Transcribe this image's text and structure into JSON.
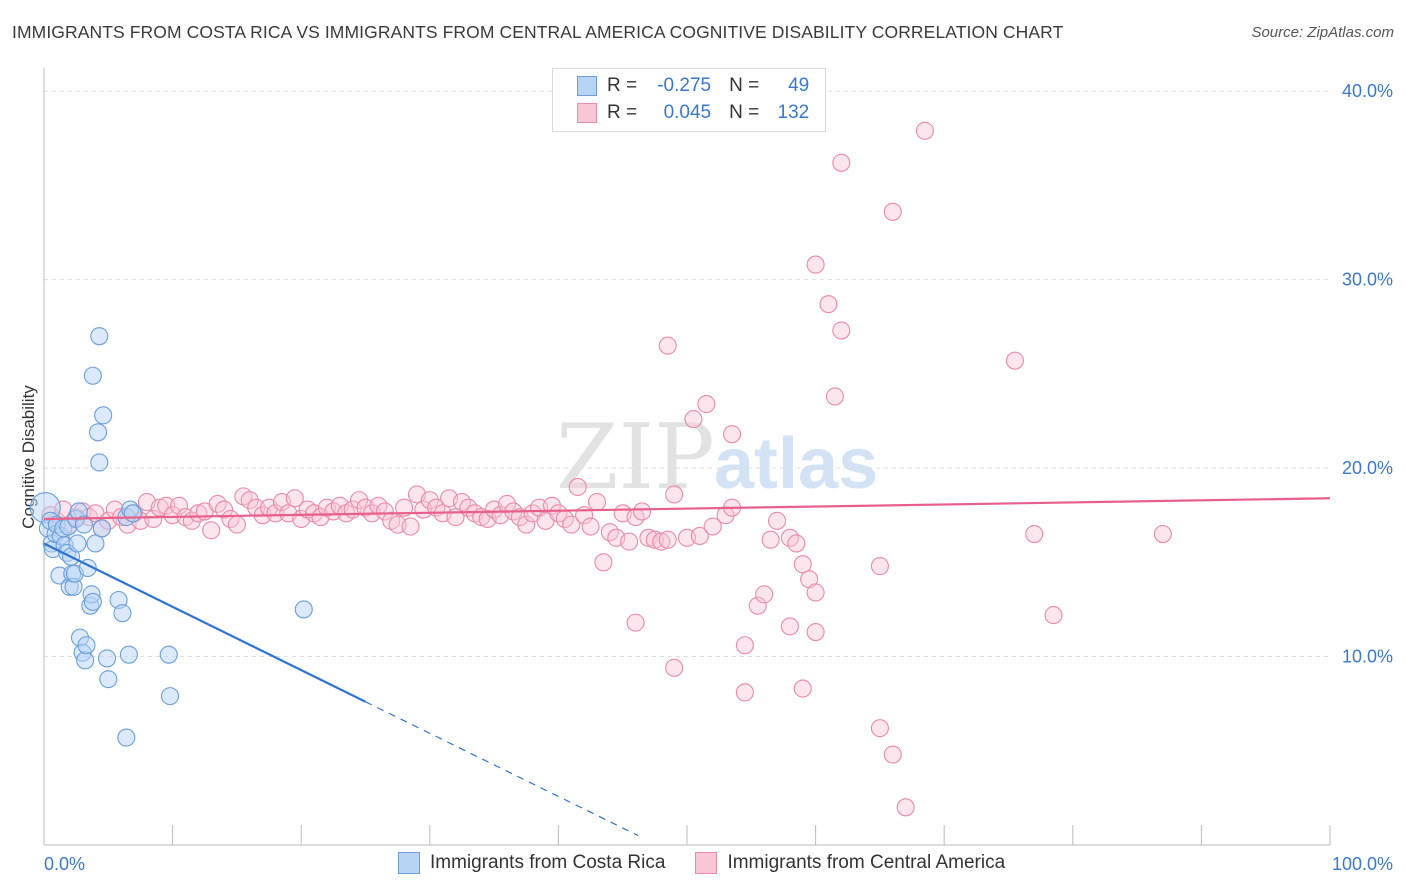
{
  "title": "IMMIGRANTS FROM COSTA RICA VS IMMIGRANTS FROM CENTRAL AMERICA COGNITIVE DISABILITY CORRELATION CHART",
  "source": "Source: ZipAtlas.com",
  "watermark": {
    "zip": "ZIP",
    "atlas": "atlas"
  },
  "legend": {
    "rows": [
      {
        "r_label": "R =",
        "r_value": "-0.275",
        "n_label": "N =",
        "n_value": "49"
      },
      {
        "r_label": "R =",
        "r_value": "0.045",
        "n_label": "N =",
        "n_value": "132"
      }
    ]
  },
  "colors": {
    "blue_fill": "#b8d4f5",
    "blue_stroke": "#6a9fd8",
    "blue_line": "#2f74d0",
    "pink_fill": "#f9c6d6",
    "pink_stroke": "#e98aa8",
    "pink_line": "#e8608a",
    "tick_text": "#3a78d0",
    "grid": "#dddddd"
  },
  "chart_data": {
    "type": "scatter",
    "title": "IMMIGRANTS FROM COSTA RICA VS IMMIGRANTS FROM CENTRAL AMERICA COGNITIVE DISABILITY CORRELATION CHART",
    "xlabel": "",
    "ylabel": "Cognitive Disability",
    "xlim": [
      0,
      100
    ],
    "ylim": [
      0,
      40.7
    ],
    "x_tick_labels": [
      "0.0%",
      "100.0%"
    ],
    "y_ticks": [
      10,
      20,
      30,
      40
    ],
    "y_tick_labels": [
      "10.0%",
      "20.0%",
      "30.0%",
      "40.0%"
    ],
    "grid": true,
    "legend_position": "bottom",
    "series": [
      {
        "name": "Immigrants from Costa Rica",
        "color": "#6a9fd8",
        "trend": {
          "x": [
            0,
            25
          ],
          "y": [
            16.0,
            7.6
          ],
          "dashed_to": [
            46.2,
            0.5
          ]
        },
        "points": [
          [
            0.1,
            17.9
          ],
          [
            0.3,
            16.8
          ],
          [
            0.5,
            17.2
          ],
          [
            0.6,
            16.0
          ],
          [
            0.7,
            15.7
          ],
          [
            0.9,
            16.5
          ],
          [
            1.0,
            17.0
          ],
          [
            1.2,
            14.3
          ],
          [
            1.3,
            16.4
          ],
          [
            1.5,
            16.8
          ],
          [
            1.6,
            15.9
          ],
          [
            1.8,
            15.5
          ],
          [
            1.9,
            16.9
          ],
          [
            2.0,
            13.7
          ],
          [
            2.1,
            15.3
          ],
          [
            2.2,
            14.4
          ],
          [
            2.3,
            13.7
          ],
          [
            2.4,
            14.4
          ],
          [
            2.5,
            17.3
          ],
          [
            2.6,
            16.0
          ],
          [
            2.7,
            17.7
          ],
          [
            2.8,
            11.0
          ],
          [
            3.0,
            10.2
          ],
          [
            3.1,
            17.0
          ],
          [
            3.2,
            9.8
          ],
          [
            3.3,
            10.6
          ],
          [
            3.4,
            14.7
          ],
          [
            3.6,
            12.7
          ],
          [
            3.7,
            13.3
          ],
          [
            3.8,
            12.9
          ],
          [
            4.0,
            16.0
          ],
          [
            4.2,
            21.9
          ],
          [
            4.3,
            20.3
          ],
          [
            4.5,
            16.8
          ],
          [
            4.9,
            9.9
          ],
          [
            3.8,
            24.9
          ],
          [
            4.3,
            27.0
          ],
          [
            4.6,
            22.8
          ],
          [
            5.0,
            8.8
          ],
          [
            5.8,
            13.0
          ],
          [
            6.1,
            12.3
          ],
          [
            6.4,
            17.4
          ],
          [
            6.4,
            5.7
          ],
          [
            6.6,
            10.1
          ],
          [
            6.7,
            17.8
          ],
          [
            9.7,
            10.1
          ],
          [
            9.8,
            7.9
          ],
          [
            20.2,
            12.5
          ],
          [
            6.9,
            17.6
          ]
        ]
      },
      {
        "name": "Immigrants from Central America",
        "color": "#e98aa8",
        "trend": {
          "x": [
            0,
            100
          ],
          "y": [
            17.3,
            18.4
          ]
        },
        "points": [
          [
            0.5,
            17.5
          ],
          [
            1.0,
            17.2
          ],
          [
            1.5,
            17.8
          ],
          [
            2.0,
            17.0
          ],
          [
            2.5,
            17.4
          ],
          [
            3.0,
            17.7
          ],
          [
            3.5,
            17.4
          ],
          [
            4.0,
            17.6
          ],
          [
            4.5,
            16.8
          ],
          [
            5.0,
            17.2
          ],
          [
            5.5,
            17.8
          ],
          [
            6.0,
            17.4
          ],
          [
            6.5,
            17.0
          ],
          [
            7.0,
            17.6
          ],
          [
            7.5,
            17.2
          ],
          [
            8.0,
            18.2
          ],
          [
            8.5,
            17.3
          ],
          [
            9.0,
            17.9
          ],
          [
            9.5,
            18.0
          ],
          [
            10.0,
            17.5
          ],
          [
            10.5,
            18.0
          ],
          [
            11.0,
            17.4
          ],
          [
            11.5,
            17.2
          ],
          [
            12.0,
            17.6
          ],
          [
            12.5,
            17.7
          ],
          [
            13.0,
            16.7
          ],
          [
            13.5,
            18.1
          ],
          [
            14.0,
            17.8
          ],
          [
            14.5,
            17.3
          ],
          [
            15.0,
            17.0
          ],
          [
            15.5,
            18.5
          ],
          [
            16.0,
            18.3
          ],
          [
            16.5,
            17.9
          ],
          [
            17.0,
            17.5
          ],
          [
            17.5,
            17.9
          ],
          [
            18.0,
            17.6
          ],
          [
            18.5,
            18.2
          ],
          [
            19.0,
            17.6
          ],
          [
            19.5,
            18.4
          ],
          [
            20.0,
            17.3
          ],
          [
            20.5,
            17.8
          ],
          [
            21.0,
            17.6
          ],
          [
            21.5,
            17.4
          ],
          [
            22.0,
            17.9
          ],
          [
            22.5,
            17.7
          ],
          [
            23.0,
            18.0
          ],
          [
            23.5,
            17.6
          ],
          [
            24.0,
            17.8
          ],
          [
            24.5,
            18.3
          ],
          [
            25.0,
            17.9
          ],
          [
            25.5,
            17.6
          ],
          [
            26.0,
            18.0
          ],
          [
            26.5,
            17.7
          ],
          [
            27.0,
            17.2
          ],
          [
            27.5,
            17.0
          ],
          [
            28.0,
            17.9
          ],
          [
            28.5,
            16.9
          ],
          [
            29.0,
            18.6
          ],
          [
            29.5,
            17.8
          ],
          [
            30.0,
            18.3
          ],
          [
            30.5,
            17.9
          ],
          [
            31.0,
            17.6
          ],
          [
            31.5,
            18.4
          ],
          [
            32.0,
            17.4
          ],
          [
            32.5,
            18.2
          ],
          [
            33.0,
            17.9
          ],
          [
            33.5,
            17.6
          ],
          [
            34.0,
            17.4
          ],
          [
            34.5,
            17.3
          ],
          [
            35.0,
            17.8
          ],
          [
            35.5,
            17.5
          ],
          [
            36.0,
            18.1
          ],
          [
            36.5,
            17.7
          ],
          [
            37.0,
            17.4
          ],
          [
            37.5,
            17.0
          ],
          [
            38.0,
            17.6
          ],
          [
            38.5,
            17.9
          ],
          [
            39.0,
            17.2
          ],
          [
            39.5,
            18.0
          ],
          [
            40.0,
            17.6
          ],
          [
            40.5,
            17.3
          ],
          [
            41.0,
            17.0
          ],
          [
            41.5,
            19.0
          ],
          [
            42.0,
            17.5
          ],
          [
            42.5,
            16.9
          ],
          [
            43.0,
            18.2
          ],
          [
            43.5,
            15.0
          ],
          [
            44.0,
            16.6
          ],
          [
            44.5,
            16.3
          ],
          [
            45.0,
            17.6
          ],
          [
            45.5,
            16.1
          ],
          [
            46.0,
            17.4
          ],
          [
            46.5,
            17.7
          ],
          [
            47.0,
            16.3
          ],
          [
            47.5,
            16.2
          ],
          [
            48.0,
            16.1
          ],
          [
            48.5,
            16.2
          ],
          [
            49.0,
            18.6
          ],
          [
            50.0,
            16.3
          ],
          [
            51.0,
            16.4
          ],
          [
            52.0,
            16.9
          ],
          [
            53.0,
            17.5
          ],
          [
            53.5,
            17.9
          ],
          [
            56.5,
            16.2
          ],
          [
            57.0,
            17.2
          ],
          [
            58.0,
            16.3
          ],
          [
            58.5,
            16.0
          ],
          [
            59.0,
            14.9
          ],
          [
            59.5,
            14.1
          ],
          [
            60.0,
            13.4
          ],
          [
            48.5,
            26.5
          ],
          [
            50.5,
            22.6
          ],
          [
            51.5,
            23.4
          ],
          [
            53.5,
            21.8
          ],
          [
            54.5,
            10.6
          ],
          [
            55.5,
            12.7
          ],
          [
            56.0,
            13.3
          ],
          [
            58.0,
            11.6
          ],
          [
            59.0,
            8.3
          ],
          [
            60.0,
            11.3
          ],
          [
            61.0,
            28.7
          ],
          [
            61.5,
            23.8
          ],
          [
            62.0,
            27.3
          ],
          [
            60.0,
            30.8
          ],
          [
            62.0,
            36.2
          ],
          [
            65.0,
            14.8
          ],
          [
            66.0,
            33.6
          ],
          [
            65.0,
            6.2
          ],
          [
            66.0,
            4.8
          ],
          [
            67.0,
            2.0
          ],
          [
            68.5,
            37.9
          ],
          [
            75.5,
            25.7
          ],
          [
            77.0,
            16.5
          ],
          [
            78.5,
            12.2
          ],
          [
            87.0,
            16.5
          ],
          [
            46.0,
            11.8
          ],
          [
            49.0,
            9.4
          ],
          [
            54.5,
            8.1
          ]
        ]
      }
    ]
  },
  "bottom_legend": [
    {
      "label": "Immigrants from Costa Rica"
    },
    {
      "label": "Immigrants from Central America"
    }
  ]
}
